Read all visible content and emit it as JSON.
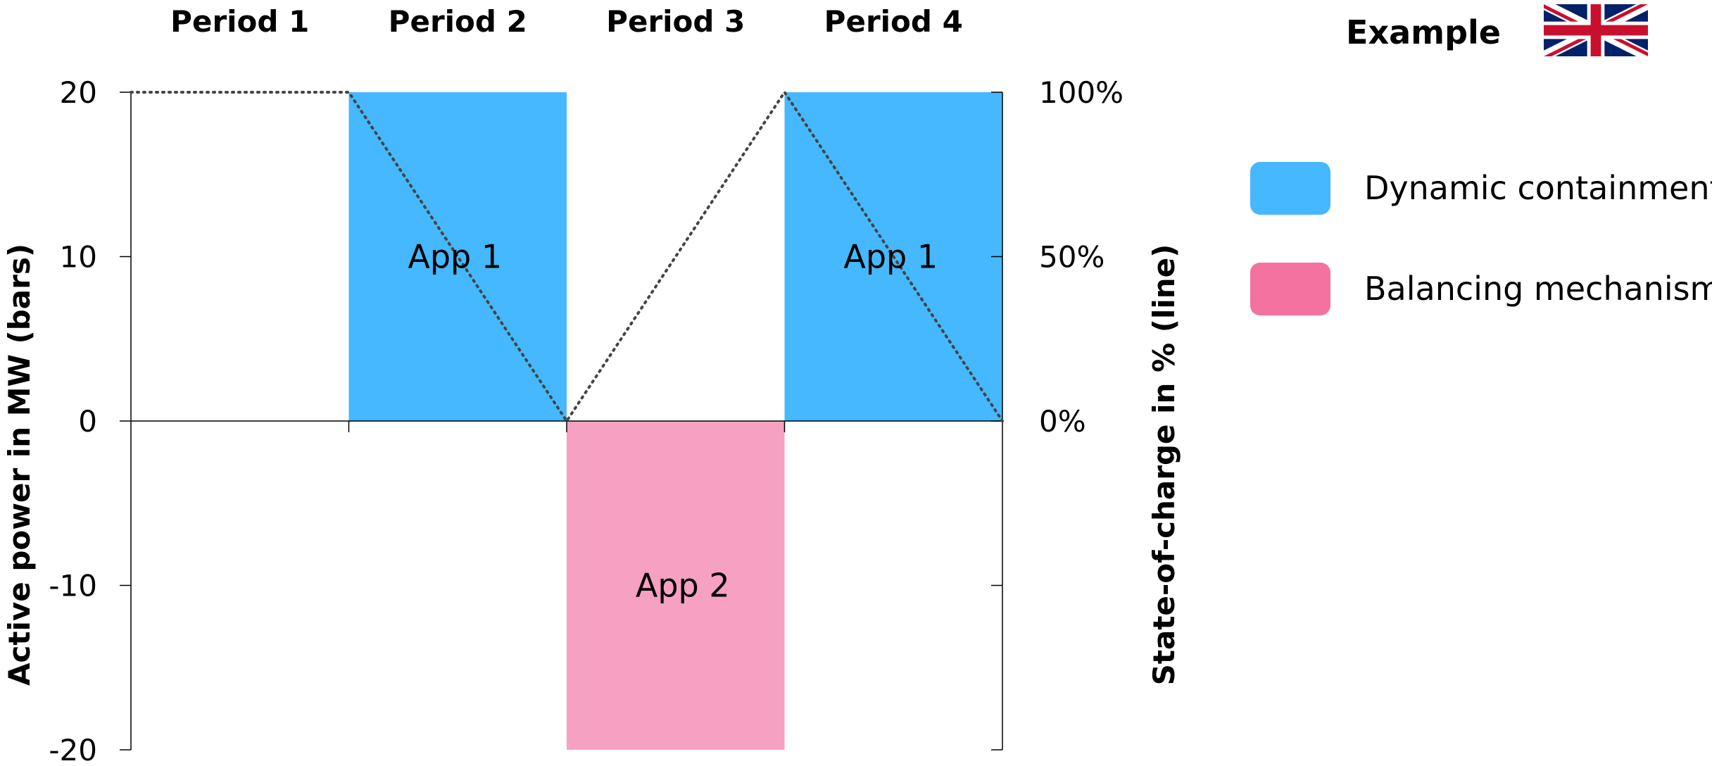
{
  "chart_data": {
    "type": "bar",
    "categories": [
      "Period 1",
      "Period 2",
      "Period 3",
      "Period 4"
    ],
    "bars": [
      {
        "period": "Period 1",
        "value": 0,
        "series": "",
        "label": ""
      },
      {
        "period": "Period 2",
        "value": 20,
        "series": "Dynamic containment",
        "label": "App 1"
      },
      {
        "period": "Period 3",
        "value": -20,
        "series": "Balancing mechanism",
        "label": "App 2"
      },
      {
        "period": "Period 4",
        "value": 20,
        "series": "Dynamic containment",
        "label": "App 1"
      }
    ],
    "line": {
      "style": "dotted",
      "x": [
        0,
        1,
        2,
        3,
        4
      ],
      "values": [
        100,
        100,
        0,
        100,
        0
      ]
    },
    "ylabel": "Active power in MW (bars)",
    "y2label": "State-of-charge in % (line)",
    "ylim": [
      -20,
      20
    ],
    "yticks": [
      20,
      10,
      0,
      -10,
      -20
    ],
    "yticklabels": [
      "20",
      "10",
      "0",
      "-10",
      "-20"
    ],
    "y2lim": [
      0,
      100
    ],
    "y2ticks": [
      100,
      50,
      0
    ],
    "y2ticklabels": [
      "100%",
      "50%",
      "0%"
    ],
    "legend": [
      {
        "name": "Dynamic containment",
        "color": "#45b8ff",
        "icon_color": "#45b8ff"
      },
      {
        "name": "Balancing mechanism",
        "color": "#f6a0c2",
        "icon_color": "#f372a0"
      }
    ],
    "legend_position": "right",
    "grid": false
  },
  "header": {
    "example_label": "Example",
    "flag_icon": "uk-flag-icon"
  }
}
